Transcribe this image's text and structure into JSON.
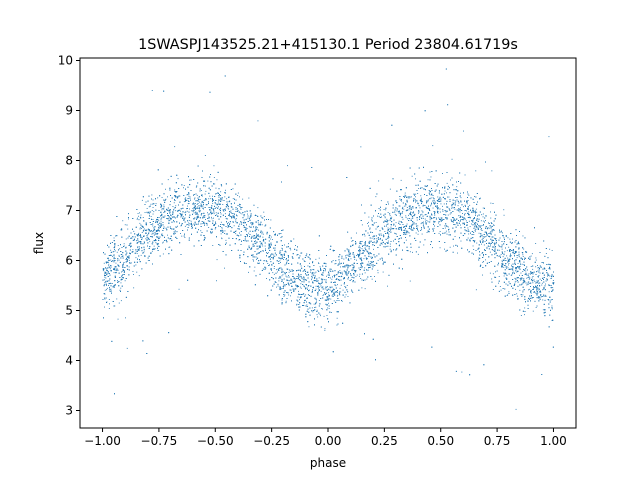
{
  "chart_data": {
    "type": "scatter",
    "title": "1SWASPJ143525.21+415130.1 Period 23804.61719s",
    "xlabel": "phase",
    "ylabel": "flux",
    "xlim": [
      -1.1,
      1.1
    ],
    "ylim": [
      2.65,
      10.05
    ],
    "x_ticks": [
      -1.0,
      -0.75,
      -0.5,
      -0.25,
      0.0,
      0.25,
      0.5,
      0.75,
      1.0
    ],
    "x_tick_labels": [
      "−1.00",
      "−0.75",
      "−0.50",
      "−0.25",
      "0.00",
      "0.25",
      "0.50",
      "0.75",
      "1.00"
    ],
    "y_ticks": [
      3,
      4,
      5,
      6,
      7,
      8,
      9,
      10
    ],
    "y_tick_labels": [
      "3",
      "4",
      "5",
      "6",
      "7",
      "8",
      "9",
      "10"
    ],
    "grid": false,
    "marker_color": "#1f77b4",
    "series": [
      {
        "points_description_free": true,
        "x": [
          -1.0,
          -0.95,
          -0.9,
          -0.85,
          -0.8,
          -0.75,
          -0.7,
          -0.65,
          -0.6,
          -0.55,
          -0.5,
          -0.45,
          -0.4,
          -0.35,
          -0.3,
          -0.25,
          -0.2,
          -0.15,
          -0.1,
          -0.05,
          0.0,
          0.05,
          0.1,
          0.15,
          0.2,
          0.25,
          0.3,
          0.35,
          0.4,
          0.45,
          0.5,
          0.55,
          0.6,
          0.65,
          0.7,
          0.75,
          0.8,
          0.85,
          0.9,
          0.95,
          1.0
        ],
        "y": [
          5.6,
          5.85,
          6.1,
          6.35,
          6.55,
          6.75,
          6.9,
          7.0,
          7.05,
          7.05,
          7.0,
          6.9,
          6.75,
          6.55,
          6.3,
          6.05,
          5.8,
          5.6,
          5.5,
          5.45,
          5.45,
          5.6,
          5.85,
          6.1,
          6.35,
          6.55,
          6.75,
          6.9,
          7.0,
          7.05,
          7.05,
          7.0,
          6.9,
          6.7,
          6.45,
          6.2,
          5.95,
          5.75,
          5.6,
          5.5,
          5.5
        ]
      }
    ]
  }
}
